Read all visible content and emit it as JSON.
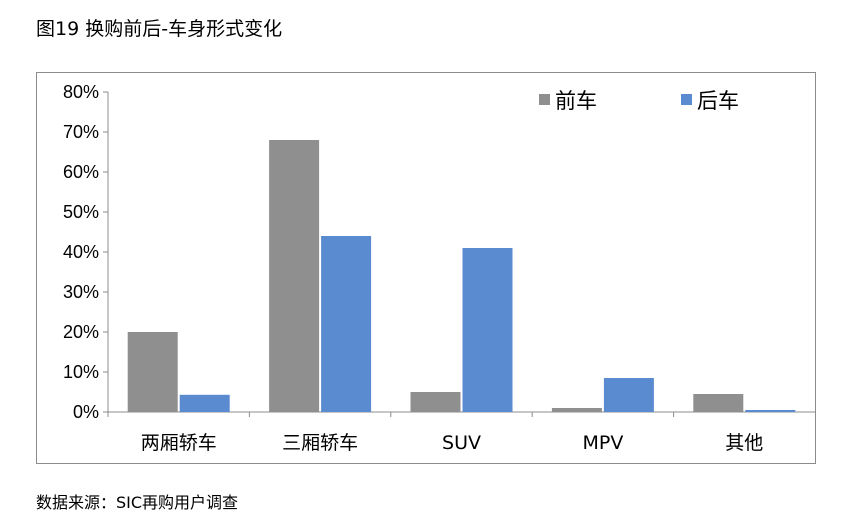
{
  "title": "图19  换购前后-车身形式变化",
  "source": "数据来源：SIC再购用户调查",
  "chart_data": {
    "type": "bar",
    "title": "",
    "xlabel": "",
    "ylabel": "",
    "categories": [
      "两厢轿车",
      "三厢轿车",
      "SUV",
      "MPV",
      "其他"
    ],
    "series": [
      {
        "name": "前车",
        "color": "#8f8f8f",
        "values": [
          0.2,
          0.68,
          0.05,
          0.01,
          0.045
        ]
      },
      {
        "name": "后车",
        "color": "#5a8acf",
        "values": [
          0.043,
          0.44,
          0.41,
          0.085,
          0.005
        ]
      }
    ],
    "ylim": [
      0,
      0.8
    ],
    "yticks": [
      "0%",
      "10%",
      "20%",
      "30%",
      "40%",
      "50%",
      "60%",
      "70%",
      "80%"
    ],
    "grid": false,
    "legend": "top-right"
  }
}
